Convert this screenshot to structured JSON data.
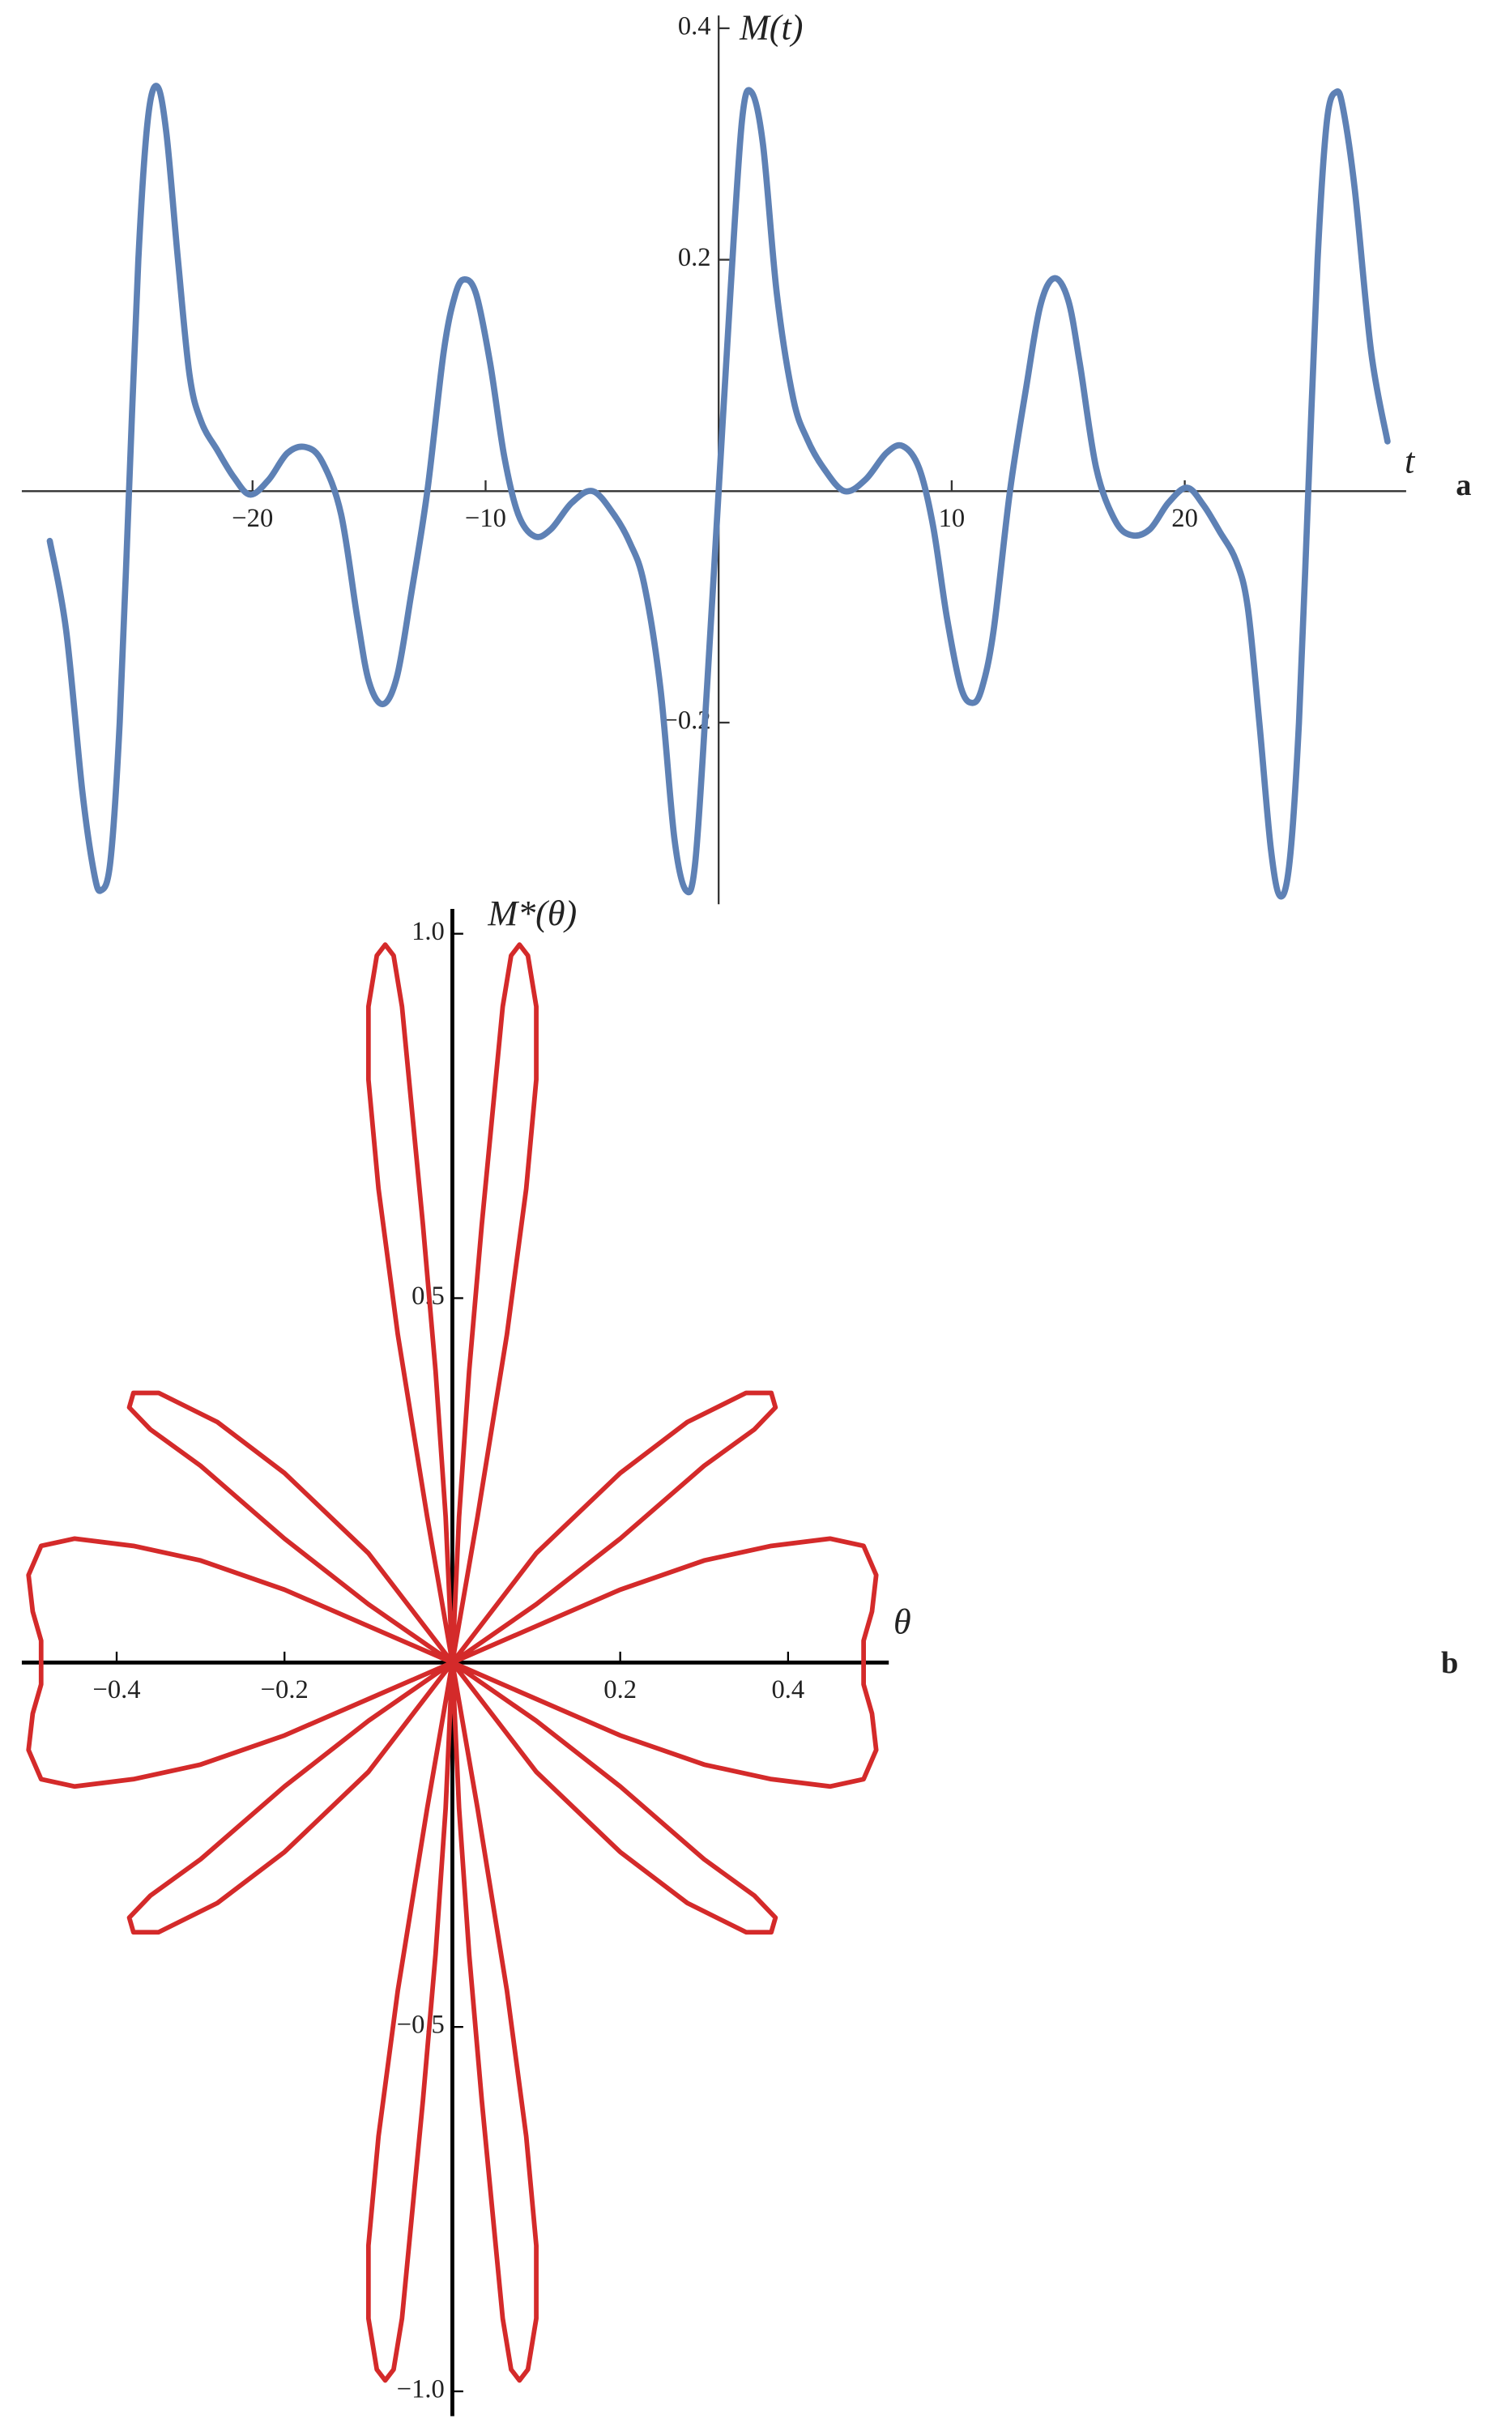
{
  "chart_data": [
    {
      "type": "line",
      "panel_label": "a",
      "xlabel": "t",
      "ylabel": "M(t)",
      "color": "#5e81b5",
      "xlim": [
        -29.9,
        29.5
      ],
      "ylim": [
        -0.357,
        0.411
      ],
      "xticks": [
        {
          "value": -20,
          "label": "−20"
        },
        {
          "value": -10,
          "label": "−10"
        },
        10,
        20
      ],
      "yticks": [
        {
          "value": -0.2,
          "label": "−0.2"
        },
        0.2,
        0.4
      ],
      "x": [
        -28.7,
        -28,
        -27.3,
        -26.8,
        -26.5,
        -26.1,
        -25.7,
        -25.3,
        -24.9,
        -24.5,
        -24.1,
        -23.7,
        -23.2,
        -22.7,
        -22.2,
        -21.5,
        -20.8,
        -20.1,
        -19.3,
        -18.5,
        -17.7,
        -17,
        -16.2,
        -15.5,
        -15,
        -14.4,
        -13.8,
        -13.2,
        -12.5,
        -11.8,
        -11.3,
        -10.9,
        -10.4,
        -9.8,
        -9.2,
        -8.6,
        -7.9,
        -7.2,
        -6.3,
        -5.4,
        -4.5,
        -3.8,
        -3.2,
        -2.5,
        -1.9,
        -1.4,
        -1,
        -0.5,
        0,
        0.5,
        1,
        1.4,
        1.9,
        2.5,
        3.2,
        3.8,
        4.5,
        5.4,
        6.3,
        7.2,
        7.9,
        8.6,
        9.2,
        9.8,
        10.4,
        10.9,
        11.3,
        11.8,
        12.5,
        13.2,
        13.8,
        14.4,
        15,
        15.5,
        16.2,
        17,
        17.7,
        18.5,
        19.3,
        20.1,
        20.8,
        21.5,
        22.2,
        22.7,
        23.2,
        23.7,
        24.1,
        24.5,
        24.9,
        25.3,
        25.7,
        26.1,
        26.5,
        26.8,
        27.3,
        28,
        28.7
      ],
      "values": [
        -0.043,
        -0.12,
        -0.26,
        -0.33,
        -0.345,
        -0.32,
        -0.2,
        0,
        0.2,
        0.32,
        0.35,
        0.31,
        0.2,
        0.1,
        0.06,
        0.035,
        0.012,
        -0.003,
        0.01,
        0.033,
        0.038,
        0.025,
        -0.02,
        -0.11,
        -0.165,
        -0.184,
        -0.16,
        -0.09,
        0,
        0.12,
        0.17,
        0.183,
        0.17,
        0.11,
        0.03,
        -0.02,
        -0.039,
        -0.033,
        -0.01,
        0,
        -0.02,
        -0.045,
        -0.08,
        -0.17,
        -0.3,
        -0.345,
        -0.32,
        -0.17,
        0,
        0.17,
        0.32,
        0.345,
        0.3,
        0.17,
        0.08,
        0.045,
        0.02,
        0,
        0.01,
        0.033,
        0.039,
        0.02,
        -0.03,
        -0.11,
        -0.17,
        -0.183,
        -0.17,
        -0.12,
        0,
        0.09,
        0.16,
        0.184,
        0.165,
        0.11,
        0.02,
        -0.025,
        -0.038,
        -0.033,
        -0.01,
        0.003,
        -0.012,
        -0.035,
        -0.06,
        -0.1,
        -0.2,
        -0.31,
        -0.35,
        -0.32,
        -0.2,
        0,
        0.2,
        0.32,
        0.345,
        0.33,
        0.26,
        0.12,
        0.043
      ]
    },
    {
      "type": "line",
      "panel_label": "b",
      "xlabel": "θ",
      "ylabel": "M*(θ)",
      "color": "#d42a2a",
      "xlim": [
        -0.513,
        0.52
      ],
      "ylim": [
        -1.034,
        1.034
      ],
      "xticks": [
        {
          "value": -0.4,
          "label": "−0.4"
        },
        {
          "value": -0.2,
          "label": "−0.2"
        },
        0.2,
        0.4
      ],
      "yticks": [
        {
          "value": -1,
          "label": "−1.0"
        },
        {
          "value": -0.5,
          "label": "−0.5"
        },
        0.5,
        {
          "value": 1,
          "label": "1.0"
        }
      ],
      "x": [
        0,
        0.1,
        0.2,
        0.3,
        0.38,
        0.45,
        0.49,
        0.505,
        0.5,
        0.49,
        0.49,
        0.49,
        0.5,
        0.505,
        0.49,
        0.45,
        0.38,
        0.3,
        0.2,
        0.1,
        0,
        0.1,
        0.2,
        0.3,
        0.36,
        0.385,
        0.38,
        0.35,
        0.28,
        0.2,
        0.1,
        0,
        0.03,
        0.065,
        0.088,
        0.1,
        0.1,
        0.09,
        0.08,
        0.07,
        0.06,
        0.05,
        0.035,
        0.02,
        0.008,
        0,
        -0.008,
        -0.02,
        -0.035,
        -0.05,
        -0.06,
        -0.07,
        -0.08,
        -0.09,
        -0.1,
        -0.1,
        -0.088,
        -0.065,
        -0.03,
        0,
        -0.1,
        -0.2,
        -0.28,
        -0.35,
        -0.38,
        -0.385,
        -0.36,
        -0.3,
        -0.2,
        -0.1,
        0,
        -0.1,
        -0.2,
        -0.3,
        -0.38,
        -0.45,
        -0.49,
        -0.505,
        -0.5,
        -0.49,
        -0.49,
        -0.49,
        -0.5,
        -0.505,
        -0.49,
        -0.45,
        -0.38,
        -0.3,
        -0.2,
        -0.1,
        0,
        -0.1,
        -0.2,
        -0.3,
        -0.36,
        -0.385,
        -0.38,
        -0.35,
        -0.28,
        -0.2,
        -0.1,
        0,
        -0.03,
        -0.065,
        -0.088,
        -0.1,
        -0.1,
        -0.09,
        -0.08,
        -0.07,
        -0.06,
        -0.05,
        -0.035,
        -0.02,
        -0.008,
        0,
        0.008,
        0.02,
        0.035,
        0.05,
        0.06,
        0.07,
        0.08,
        0.09,
        0.1,
        0.1,
        0.088,
        0.065,
        0.03,
        0,
        0.1,
        0.2,
        0.28,
        0.35,
        0.38,
        0.385,
        0.36,
        0.3,
        0.2,
        0.1,
        0
      ],
      "values": [
        0,
        0.05,
        0.1,
        0.14,
        0.16,
        0.17,
        0.16,
        0.12,
        0.07,
        0.03,
        0,
        -0.03,
        -0.07,
        -0.12,
        -0.16,
        -0.17,
        -0.16,
        -0.14,
        -0.1,
        -0.05,
        0,
        0.08,
        0.17,
        0.27,
        0.32,
        0.35,
        0.37,
        0.37,
        0.33,
        0.26,
        0.15,
        0,
        0.2,
        0.45,
        0.65,
        0.8,
        0.9,
        0.97,
        0.985,
        0.97,
        0.9,
        0.78,
        0.6,
        0.4,
        0.2,
        0,
        0.2,
        0.4,
        0.6,
        0.78,
        0.9,
        0.97,
        0.985,
        0.97,
        0.9,
        0.8,
        0.65,
        0.45,
        0.2,
        0,
        0.15,
        0.26,
        0.33,
        0.37,
        0.37,
        0.35,
        0.32,
        0.27,
        0.17,
        0.08,
        0,
        0.05,
        0.1,
        0.14,
        0.16,
        0.17,
        0.16,
        0.12,
        0.07,
        0.03,
        0,
        -0.03,
        -0.07,
        -0.12,
        -0.16,
        -0.17,
        -0.16,
        -0.14,
        -0.1,
        -0.05,
        0,
        -0.08,
        -0.17,
        -0.27,
        -0.32,
        -0.35,
        -0.37,
        -0.37,
        -0.33,
        -0.26,
        -0.15,
        0,
        -0.2,
        -0.45,
        -0.65,
        -0.8,
        -0.9,
        -0.97,
        -0.985,
        -0.97,
        -0.9,
        -0.78,
        -0.6,
        -0.4,
        -0.2,
        0,
        -0.2,
        -0.4,
        -0.6,
        -0.78,
        -0.9,
        -0.97,
        -0.985,
        -0.97,
        -0.9,
        -0.8,
        -0.65,
        -0.45,
        -0.2,
        0,
        -0.15,
        -0.26,
        -0.33,
        -0.37,
        -0.37,
        -0.35,
        -0.32,
        -0.27,
        -0.17,
        -0.08,
        0
      ]
    }
  ]
}
